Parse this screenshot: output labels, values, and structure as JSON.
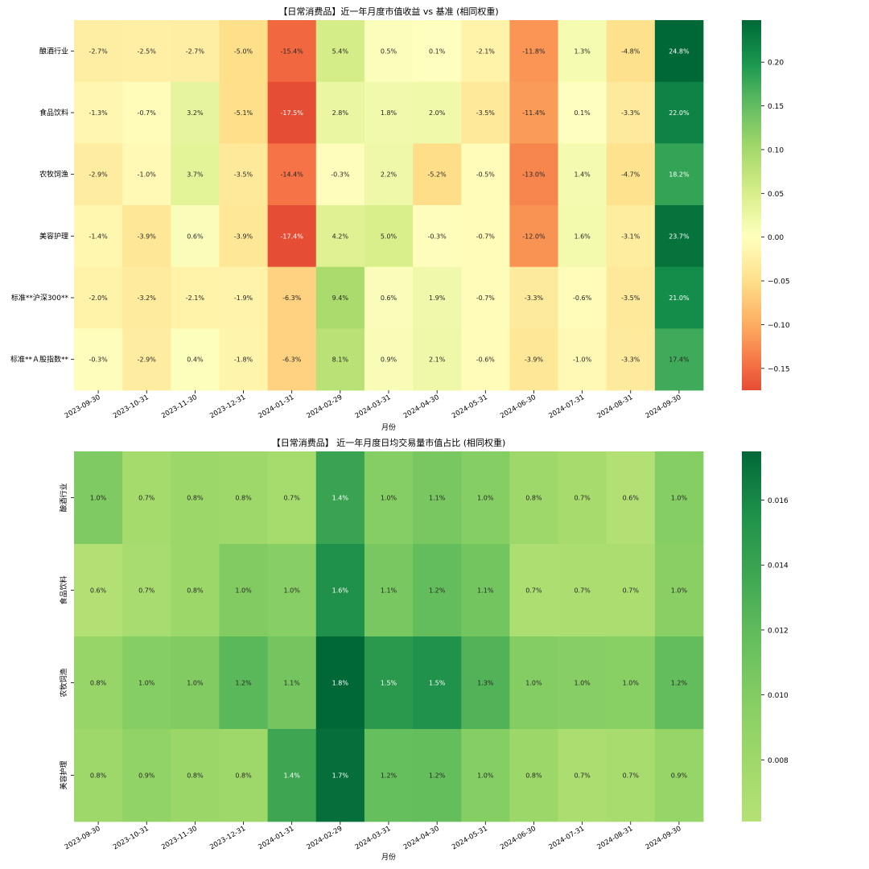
{
  "chart_data": [
    {
      "type": "heatmap",
      "title": "【日常消费品】近一年月度市值收益 vs 基准 (相同权重)",
      "xlabel": "月份",
      "ylabel": "",
      "x": [
        "2023-09-30",
        "2023-10-31",
        "2023-11-30",
        "2023-12-31",
        "2024-01-31",
        "2024-02-29",
        "2024-03-31",
        "2024-04-30",
        "2024-05-31",
        "2024-06-30",
        "2024-07-31",
        "2024-08-31",
        "2024-09-30"
      ],
      "y": [
        "酿酒行业",
        "食品饮料",
        "农牧饲渔",
        "美容护理",
        "标准**沪深300**",
        "标准**Ａ股指数**"
      ],
      "values": [
        [
          -0.027,
          -0.025,
          -0.027,
          -0.05,
          -0.154,
          0.054,
          0.005,
          0.001,
          -0.021,
          -0.118,
          0.013,
          -0.048,
          0.248
        ],
        [
          -0.013,
          -0.007,
          0.032,
          -0.051,
          -0.175,
          0.028,
          0.018,
          0.02,
          -0.035,
          -0.114,
          0.001,
          -0.033,
          0.22
        ],
        [
          -0.029,
          -0.01,
          0.037,
          -0.035,
          -0.144,
          -0.003,
          0.022,
          -0.052,
          -0.005,
          -0.13,
          0.014,
          -0.047,
          0.182
        ],
        [
          -0.014,
          -0.039,
          0.006,
          -0.039,
          -0.174,
          0.042,
          0.05,
          -0.003,
          -0.007,
          -0.12,
          0.016,
          -0.031,
          0.237
        ],
        [
          -0.02,
          -0.032,
          -0.021,
          -0.019,
          -0.063,
          0.094,
          0.006,
          0.019,
          -0.007,
          -0.033,
          -0.006,
          -0.035,
          0.21
        ],
        [
          -0.003,
          -0.029,
          0.004,
          -0.018,
          -0.063,
          0.081,
          0.009,
          0.021,
          -0.006,
          -0.039,
          -0.01,
          -0.033,
          0.174
        ]
      ],
      "labels": [
        [
          "-2.7%",
          "-2.5%",
          "-2.7%",
          "-5.0%",
          "-15.4%",
          "5.4%",
          "0.5%",
          "0.1%",
          "-2.1%",
          "-11.8%",
          "1.3%",
          "-4.8%",
          "24.8%"
        ],
        [
          "-1.3%",
          "-0.7%",
          "3.2%",
          "-5.1%",
          "-17.5%",
          "2.8%",
          "1.8%",
          "2.0%",
          "-3.5%",
          "-11.4%",
          "0.1%",
          "-3.3%",
          "22.0%"
        ],
        [
          "-2.9%",
          "-1.0%",
          "3.7%",
          "-3.5%",
          "-14.4%",
          "-0.3%",
          "2.2%",
          "-5.2%",
          "-0.5%",
          "-13.0%",
          "1.4%",
          "-4.7%",
          "18.2%"
        ],
        [
          "-1.4%",
          "-3.9%",
          "0.6%",
          "-3.9%",
          "-17.4%",
          "4.2%",
          "5.0%",
          "-0.3%",
          "-0.7%",
          "-12.0%",
          "1.6%",
          "-3.1%",
          "23.7%"
        ],
        [
          "-2.0%",
          "-3.2%",
          "-2.1%",
          "-1.9%",
          "-6.3%",
          "9.4%",
          "0.6%",
          "1.9%",
          "-0.7%",
          "-3.3%",
          "-0.6%",
          "-3.5%",
          "21.0%"
        ],
        [
          "-0.3%",
          "-2.9%",
          "0.4%",
          "-1.8%",
          "-6.3%",
          "8.1%",
          "0.9%",
          "2.1%",
          "-0.6%",
          "-3.9%",
          "-1.0%",
          "-3.3%",
          "17.4%"
        ]
      ],
      "colormap": "RdYlGn",
      "vmin": -0.175,
      "vmax": 0.248,
      "colorbar_ticks": [
        {
          "v": 0.2,
          "label": "0.20"
        },
        {
          "v": 0.15,
          "label": "0.15"
        },
        {
          "v": 0.1,
          "label": "0.10"
        },
        {
          "v": 0.05,
          "label": "0.05"
        },
        {
          "v": 0.0,
          "label": "0.00"
        },
        {
          "v": -0.05,
          "label": "−0.05"
        },
        {
          "v": -0.1,
          "label": "−0.10"
        },
        {
          "v": -0.15,
          "label": "−0.15"
        }
      ],
      "ytick_rotation": "horizontal"
    },
    {
      "type": "heatmap",
      "title": "【日常消费品】 近一年月度日均交易量市值占比 (相同权重)",
      "xlabel": "月份",
      "ylabel": "",
      "x": [
        "2023-09-30",
        "2023-10-31",
        "2023-11-30",
        "2023-12-31",
        "2024-01-31",
        "2024-02-29",
        "2024-03-31",
        "2024-04-30",
        "2024-05-31",
        "2024-06-30",
        "2024-07-31",
        "2024-08-31",
        "2024-09-30"
      ],
      "y": [
        "酿酒行业",
        "食品饮料",
        "农牧饲渔",
        "美容护理"
      ],
      "values": [
        [
          0.0102,
          0.0075,
          0.0082,
          0.008,
          0.0074,
          0.014,
          0.0098,
          0.0106,
          0.0098,
          0.008,
          0.0073,
          0.0063,
          0.0098
        ],
        [
          0.0063,
          0.0071,
          0.0082,
          0.0101,
          0.0097,
          0.0155,
          0.0106,
          0.0118,
          0.0109,
          0.0068,
          0.007,
          0.007,
          0.0095
        ],
        [
          0.0085,
          0.0098,
          0.0101,
          0.0122,
          0.0108,
          0.0175,
          0.0148,
          0.0154,
          0.0127,
          0.0099,
          0.0097,
          0.0096,
          0.0118
        ],
        [
          0.008,
          0.0089,
          0.0083,
          0.008,
          0.0137,
          0.0172,
          0.0116,
          0.0117,
          0.0098,
          0.0082,
          0.007,
          0.0072,
          0.0086
        ]
      ],
      "labels": [
        [
          "1.0%",
          "0.7%",
          "0.8%",
          "0.8%",
          "0.7%",
          "1.4%",
          "1.0%",
          "1.1%",
          "1.0%",
          "0.8%",
          "0.7%",
          "0.6%",
          "1.0%"
        ],
        [
          "0.6%",
          "0.7%",
          "0.8%",
          "1.0%",
          "1.0%",
          "1.6%",
          "1.1%",
          "1.2%",
          "1.1%",
          "0.7%",
          "0.7%",
          "0.7%",
          "1.0%"
        ],
        [
          "0.8%",
          "1.0%",
          "1.0%",
          "1.2%",
          "1.1%",
          "1.8%",
          "1.5%",
          "1.5%",
          "1.3%",
          "1.0%",
          "1.0%",
          "1.0%",
          "1.2%"
        ],
        [
          "0.8%",
          "0.9%",
          "0.8%",
          "0.8%",
          "1.4%",
          "1.7%",
          "1.2%",
          "1.2%",
          "1.0%",
          "0.8%",
          "0.7%",
          "0.7%",
          "0.9%"
        ]
      ],
      "colormap": "YlGn-mid",
      "vmin": 0.0061,
      "vmax": 0.0175,
      "colorbar_ticks": [
        {
          "v": 0.016,
          "label": "0.016"
        },
        {
          "v": 0.014,
          "label": "0.014"
        },
        {
          "v": 0.012,
          "label": "0.012"
        },
        {
          "v": 0.01,
          "label": "0.010"
        },
        {
          "v": 0.008,
          "label": "0.008"
        }
      ],
      "ytick_rotation": "vertical"
    }
  ],
  "colors": {
    "text_dark": "#262626",
    "text_light": "#ffffff"
  }
}
